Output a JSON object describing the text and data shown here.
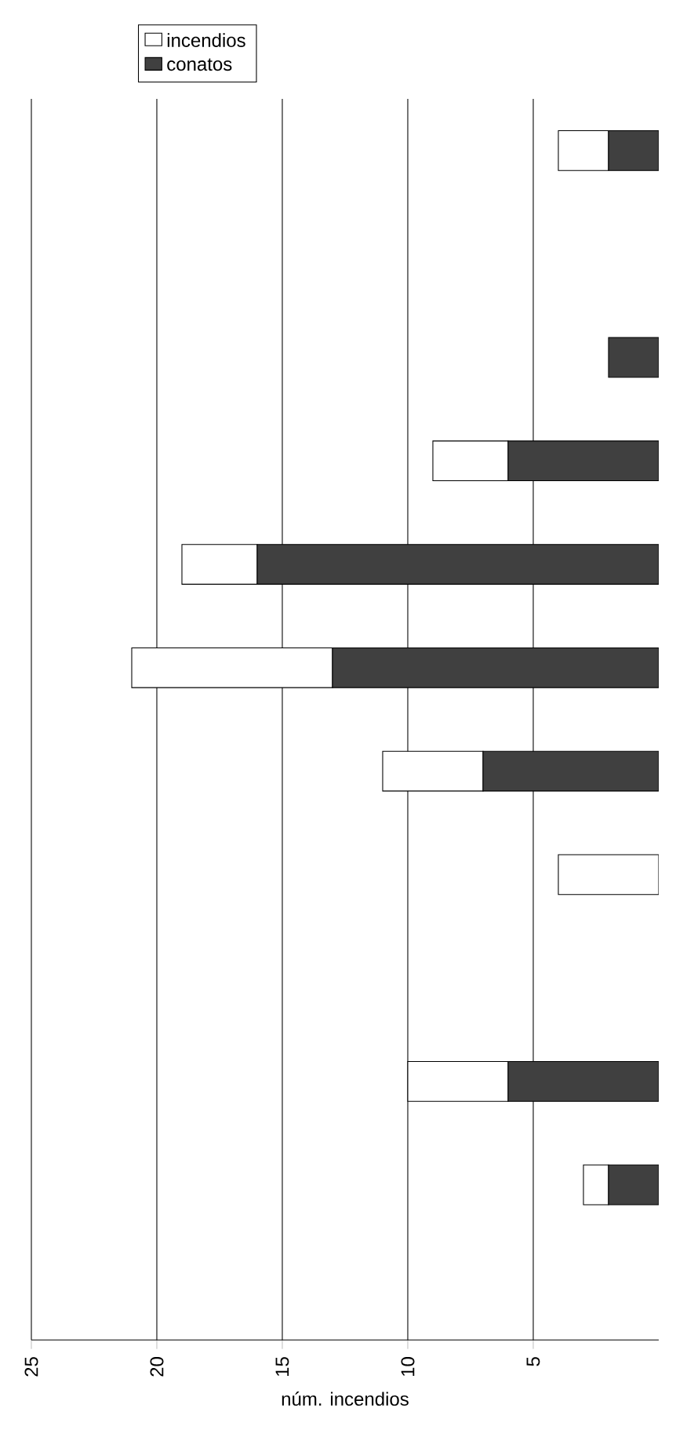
{
  "chart_data": {
    "type": "bar",
    "orientation": "horizontal",
    "stacked": true,
    "categories": [
      null,
      null,
      null,
      null,
      null,
      null,
      null,
      null,
      null,
      null,
      null,
      null
    ],
    "series": [
      {
        "name": "conatos",
        "color": "#404040",
        "values": [
          2,
          null,
          2,
          6,
          16,
          13,
          7,
          0,
          null,
          6,
          2,
          null
        ]
      },
      {
        "name": "incendios",
        "color": "#ffffff",
        "values": [
          2,
          null,
          0,
          3,
          3,
          8,
          4,
          4,
          null,
          4,
          1,
          null
        ]
      }
    ],
    "xlabel": "núm. incendios",
    "xlim": [
      25,
      0
    ],
    "xticks": [
      25,
      20,
      15,
      10,
      5
    ],
    "grid": "x",
    "legend": "top left"
  }
}
